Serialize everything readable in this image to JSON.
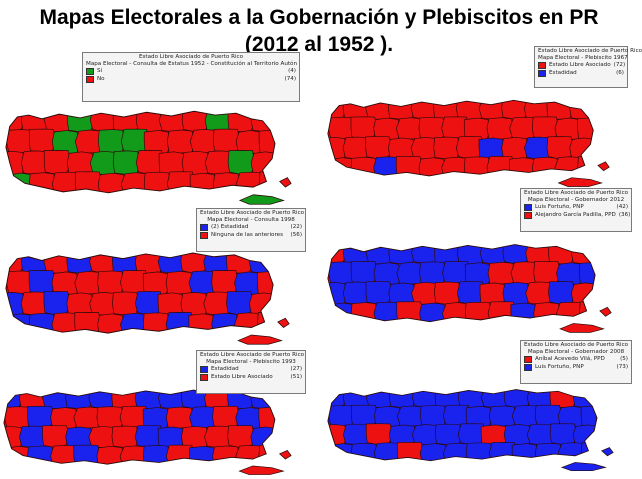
{
  "title": {
    "line1": "Mapas Electorales a la Gobernación y Plebiscitos en PR",
    "line2": "(2012 al 1952 )."
  },
  "colors": {
    "red": "#ee1111",
    "blue": "#1a22ee",
    "green": "#129a1a",
    "border": "#2a0a0a"
  },
  "maps": [
    {
      "id": "plebiscito-1952",
      "fill": "red",
      "accent": "green",
      "legend": {
        "header": [
          "Estado Libre Asociado de Puerto Rico",
          "Mapa Electoral - Consulta de Estatus 1952 - Constitución al Territorio Autón"
        ],
        "items": [
          {
            "color": "green",
            "label": "Sí",
            "count": "(4)"
          },
          {
            "color": "red",
            "label": "No",
            "count": "(74)"
          }
        ]
      }
    },
    {
      "id": "plebiscito-1967",
      "fill": "red",
      "accent": "blue",
      "legend": {
        "header": [
          "Estado Libre Asociado de Puerto Rico",
          "Mapa Electoral - Plebiscito 1967"
        ],
        "items": [
          {
            "color": "red",
            "label": "Estado Libre Asociado",
            "count": "(72)"
          },
          {
            "color": "blue",
            "label": "Estadidad",
            "count": "(6)"
          }
        ]
      }
    },
    {
      "id": "consulta-1998",
      "fill": "red",
      "accent": "blue",
      "legend": {
        "header": [
          "Estado Libre Asociado de Puerto Rico",
          "Mapa Electoral - Consulta 1998"
        ],
        "items": [
          {
            "color": "blue",
            "label": "(2) Estadidad",
            "count": "(22)"
          },
          {
            "color": "red",
            "label": "Ninguna de las anteriores",
            "count": "(56)"
          }
        ]
      }
    },
    {
      "id": "gobernador-2012",
      "fill": "red",
      "accent": "blue",
      "legend": {
        "header": [
          "Estado Libre Asociado de Puerto Rico",
          "Mapa Electoral - Gobernador 2012"
        ],
        "items": [
          {
            "color": "blue",
            "label": "Luis Fortuño, PNP",
            "count": "(42)"
          },
          {
            "color": "red",
            "label": "Alejandro García Padilla, PPD",
            "count": "(36)"
          }
        ]
      }
    },
    {
      "id": "plebiscito-1993",
      "fill": "red",
      "accent": "blue",
      "legend": {
        "header": [
          "Estado Libre Asociado de Puerto Rico",
          "Mapa Electoral - Plebiscito 1993"
        ],
        "items": [
          {
            "color": "blue",
            "label": "Estadidad",
            "count": "(27)"
          },
          {
            "color": "red",
            "label": "Estado Libre Asociado",
            "count": "(51)"
          }
        ]
      }
    },
    {
      "id": "gobernador-2008",
      "fill": "blue",
      "accent": "red",
      "legend": {
        "header": [
          "Estado Libre Asociado de Puerto Rico",
          "Mapa Electoral - Gobernador 2008"
        ],
        "items": [
          {
            "color": "red",
            "label": "Aníbal Acevedo Vilá, PPD",
            "count": "(5)"
          },
          {
            "color": "blue",
            "label": "Luis Fortuño, PNP",
            "count": "(73)"
          }
        ]
      }
    }
  ]
}
